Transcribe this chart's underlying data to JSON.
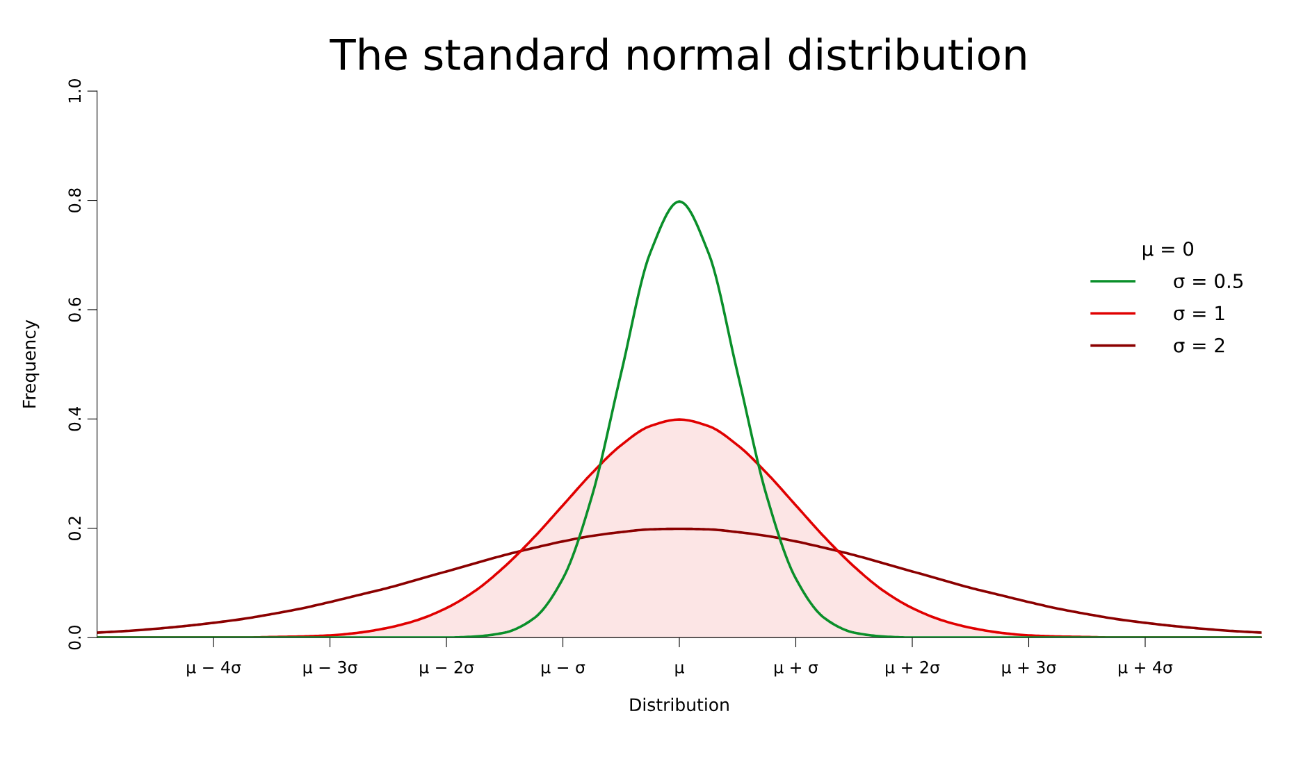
{
  "chart_data": {
    "type": "line",
    "title": "The standard normal distribution",
    "xlabel": "Distribution",
    "ylabel": "Frequency",
    "legend_title": "μ = 0",
    "legend": "right",
    "grid": false,
    "x": [
      -5,
      -4.75,
      -4.5,
      -4.25,
      -4,
      -3.75,
      -3.5,
      -3.25,
      -3,
      -2.75,
      -2.5,
      -2.25,
      -2,
      -1.75,
      -1.5,
      -1.25,
      -1,
      -0.75,
      -0.5,
      -0.25,
      0,
      0.25,
      0.5,
      0.75,
      1,
      1.25,
      1.5,
      1.75,
      2,
      2.25,
      2.5,
      2.75,
      3,
      3.25,
      3.5,
      3.75,
      4,
      4.25,
      4.5,
      4.75,
      5
    ],
    "series": [
      {
        "name": "σ = 0.5",
        "color": "#0a8f2a",
        "values": [
          0,
          0,
          0,
          0,
          0,
          0,
          0,
          0,
          0,
          0,
          0,
          0,
          0,
          0.002,
          0.009,
          0.035,
          0.108,
          0.259,
          0.484,
          0.704,
          0.798,
          0.704,
          0.484,
          0.259,
          0.108,
          0.035,
          0.009,
          0.002,
          0,
          0,
          0,
          0,
          0,
          0,
          0,
          0,
          0,
          0,
          0,
          0,
          0
        ]
      },
      {
        "name": "σ = 1",
        "type": "area",
        "color": "#e00000",
        "values": [
          0,
          0,
          0,
          0,
          0,
          0,
          0.001,
          0.002,
          0.004,
          0.009,
          0.018,
          0.032,
          0.054,
          0.086,
          0.13,
          0.183,
          0.242,
          0.301,
          0.352,
          0.387,
          0.399,
          0.387,
          0.352,
          0.301,
          0.242,
          0.183,
          0.13,
          0.086,
          0.054,
          0.032,
          0.018,
          0.009,
          0.004,
          0.002,
          0.001,
          0,
          0,
          0,
          0,
          0,
          0
        ]
      },
      {
        "name": "σ = 2",
        "color": "#8b0000",
        "values": [
          0.009,
          0.012,
          0.016,
          0.021,
          0.027,
          0.034,
          0.043,
          0.053,
          0.065,
          0.078,
          0.091,
          0.106,
          0.121,
          0.136,
          0.151,
          0.164,
          0.176,
          0.186,
          0.193,
          0.198,
          0.199,
          0.198,
          0.193,
          0.186,
          0.176,
          0.164,
          0.151,
          0.136,
          0.121,
          0.106,
          0.091,
          0.078,
          0.065,
          0.053,
          0.043,
          0.034,
          0.027,
          0.021,
          0.016,
          0.012,
          0.009
        ]
      }
    ],
    "xlim": [
      -5,
      5
    ],
    "xticks": [
      {
        "value": -4,
        "label": "μ − 4σ"
      },
      {
        "value": -3,
        "label": "μ − 3σ"
      },
      {
        "value": -2,
        "label": "μ − 2σ"
      },
      {
        "value": -1,
        "label": "μ − σ"
      },
      {
        "value": 0,
        "label": "μ"
      },
      {
        "value": 1,
        "label": "μ + σ"
      },
      {
        "value": 2,
        "label": "μ + 2σ"
      },
      {
        "value": 3,
        "label": "μ + 3σ"
      },
      {
        "value": 4,
        "label": "μ + 4σ"
      }
    ],
    "ylim": [
      0,
      1
    ],
    "yticks": [
      {
        "value": 0,
        "label": "0.0"
      },
      {
        "value": 0.2,
        "label": "0.2"
      },
      {
        "value": 0.4,
        "label": "0.4"
      },
      {
        "value": 0.6,
        "label": "0.6"
      },
      {
        "value": 0.8,
        "label": "0.8"
      },
      {
        "value": 1,
        "label": "1.0"
      }
    ]
  }
}
